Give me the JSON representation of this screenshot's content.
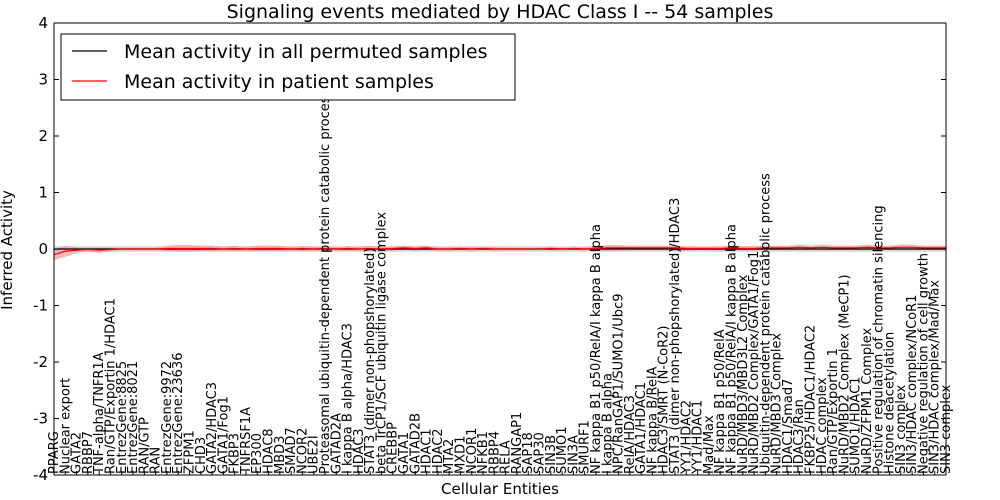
{
  "chart_data": {
    "type": "line",
    "title": "Signaling events mediated by HDAC Class I -- 54 samples",
    "xlabel": "Cellular Entities",
    "ylabel": "Inferred Activity",
    "ylim": [
      -4,
      4
    ],
    "yticks": [
      -4,
      -3,
      -2,
      -1,
      0,
      1,
      2,
      3,
      4
    ],
    "grid": false,
    "legend_position": "top-left",
    "colors": {
      "permuted": "#000000",
      "patient": "#ff0000",
      "patient_band": "#f4a0a0",
      "permuted_band": "#c8c8d2"
    },
    "categories": [
      "PPARG",
      "Nuclear export",
      "GATA2",
      "RBBP7",
      "TNF-alpha/TNFR1A",
      "Ran/GTP/Exportin 1/HDAC1",
      "EntrezGene:8825",
      "EntrezGene:8021",
      "RAN/GTP",
      "RAN",
      "EntrezGene:9972",
      "EntrezGene:23636",
      "ZFPM1",
      "CHD3",
      "GATA2/HDAC3",
      "GATA1/Fog1",
      "FKBP3",
      "TNFRSF1A",
      "EP300",
      "HDAC8",
      "MBD3",
      "SMAD7",
      "NCOR2",
      "UBE2I",
      "Proteasomal ubiquitin-dependent protein catabolic process",
      "GATAD2A",
      "I kappa B alpha/HDAC3",
      "HDAC3",
      "STAT3 (dimer non-phopshorylated)",
      "beta TrCP1/SCF ubiquitin ligase complex",
      "CREBBP",
      "GATA1",
      "GATAD2B",
      "HDAC1",
      "HDAC2",
      "MTA2",
      "MXD1",
      "NCOR1",
      "NFKB1",
      "RBBP4",
      "RELA",
      "RANGAP1",
      "SAP18",
      "SAP30",
      "SIN3B",
      "SUMO1",
      "SIN3A",
      "SMURF1",
      "NF kappa B1 p50/RelA/I kappa B alpha",
      "I kappa B alpha",
      "NPC/RanGAP1/SUMO1/Ubc9",
      "RelA/HDAC3",
      "GATA1/HDAC1",
      "NF kappa B/RelA",
      "HDAC3/SMRT (N-CoR2)",
      "STAT3 (dimer non-phopshorylated)/HDAC3",
      "YY1/HDAC2",
      "YY1/HDAC1",
      "Mad/Max",
      "NF kappa B1 p50/RelA",
      "NF kappa B1 p50/RelA/I kappa B alpha",
      "NuRD/MBD3/MBD3L2 Complex",
      "NuRD/MBD2 Complex/GATA1/Fog1",
      "Ubiquitin-dependent protein catabolic process",
      "NuRD/MBD3 Complex",
      "HDAC1/Smad7",
      "HDAC3/Ran",
      "FKBP25/HDAC1/HDAC2",
      "HDAC complex",
      "Ran/GTP/Exportin 1",
      "NuRD/MBD2 Complex (MeCP1)",
      "SUMO1/HDAC1",
      "NuRD/ZFPM1 Complex",
      "Positive regulation of chromatin silencing",
      "Histone deacetylation",
      "SIN3 complex",
      "SIN3/HDAC complex/NCoR1",
      "Negative regulation of cell growth",
      "SIN3/HDAC complex/Mad/Max",
      "SIN3 complex"
    ],
    "series": [
      {
        "name": "Mean activity in all permuted samples",
        "values": [
          0,
          0,
          0,
          0,
          0,
          0,
          0,
          0,
          0,
          0,
          0,
          0,
          0,
          0,
          0,
          0,
          0,
          0,
          0,
          0,
          0,
          0,
          0,
          0,
          0,
          0,
          0,
          0,
          0,
          0,
          0,
          0,
          0,
          0,
          0,
          0,
          0,
          0,
          0,
          0,
          0,
          0,
          0,
          0,
          0,
          0,
          0,
          0,
          0,
          0,
          0,
          0,
          0,
          0,
          0,
          0,
          0,
          0,
          0,
          0,
          0,
          0,
          0,
          0,
          0,
          0,
          0,
          0,
          0,
          0,
          0,
          0,
          0,
          0,
          0,
          0,
          0,
          0,
          0,
          0
        ]
      },
      {
        "name": "Mean activity in patient samples",
        "values": [
          -0.1,
          -0.04,
          -0.02,
          -0.01,
          -0.02,
          -0.01,
          0,
          0,
          0,
          0,
          0.01,
          0.01,
          0.01,
          0.01,
          0.01,
          0,
          0.01,
          0,
          0.01,
          0.01,
          0.01,
          0,
          0.01,
          0,
          0.01,
          0,
          0.01,
          0,
          0.01,
          0,
          0.01,
          0.02,
          0.01,
          0.02,
          0,
          0,
          0.01,
          0,
          0.01,
          0,
          0,
          0,
          0,
          0,
          0.01,
          0,
          0.01,
          0,
          0.01,
          0.02,
          0.02,
          0.02,
          0.02,
          0.02,
          0.02,
          0.02,
          0.01,
          0.01,
          0.01,
          0.01,
          0.02,
          0.01,
          0.01,
          0.02,
          0.02,
          0.02,
          0.03,
          0.02,
          0.03,
          0.02,
          0.02,
          0.02,
          0.03,
          0.02,
          0.02,
          0.03,
          0.03,
          0.02,
          0.02,
          0.02
        ]
      }
    ],
    "patient_band_halfwidth": [
      0.1,
      0.1,
      0.05,
      0.03,
      0.05,
      0.03,
      0.02,
      0.02,
      0.02,
      0.02,
      0.05,
      0.06,
      0.06,
      0.05,
      0.05,
      0.04,
      0.05,
      0.04,
      0.05,
      0.05,
      0.05,
      0.04,
      0.04,
      0.04,
      0.04,
      0.03,
      0.04,
      0.04,
      0.05,
      0.04,
      0.04,
      0.04,
      0.04,
      0.04,
      0.03,
      0.03,
      0.03,
      0.03,
      0.03,
      0.03,
      0.02,
      0.02,
      0.02,
      0.02,
      0.03,
      0.02,
      0.02,
      0.03,
      0.04,
      0.05,
      0.05,
      0.04,
      0.04,
      0.04,
      0.04,
      0.04,
      0.04,
      0.03,
      0.03,
      0.04,
      0.04,
      0.04,
      0.04,
      0.04,
      0.04,
      0.04,
      0.05,
      0.04,
      0.05,
      0.04,
      0.04,
      0.04,
      0.05,
      0.04,
      0.04,
      0.05,
      0.05,
      0.04,
      0.04,
      0.04
    ],
    "permuted_band_halfwidth": 0.05
  }
}
